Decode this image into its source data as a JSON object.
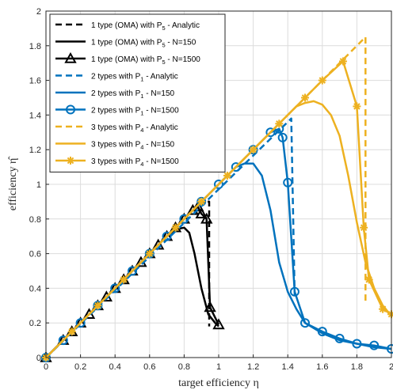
{
  "chart_data": {
    "type": "line",
    "title": "",
    "xlabel": "target efficiency η",
    "ylabel": "efficiency η̂",
    "xlim": [
      0,
      2
    ],
    "ylim": [
      0,
      2
    ],
    "xticks": [
      "0",
      "0.2",
      "0.4",
      "0.6",
      "0.8",
      "1",
      "1.2",
      "1.4",
      "1.6",
      "1.8",
      "2"
    ],
    "yticks": [
      "0",
      "0.2",
      "0.4",
      "0.6",
      "0.8",
      "1",
      "1.2",
      "1.4",
      "1.6",
      "1.8",
      "2"
    ],
    "grid": true,
    "legend_position": "top-left",
    "series": [
      {
        "name": "1 type (OMA) with P_5 - Analytic",
        "color": "#000000",
        "style": "dashed",
        "marker": "none",
        "x": [
          0,
          0.9,
          0.9,
          0.945,
          0.945
        ],
        "y": [
          0,
          0.9,
          0.9,
          0.9,
          0.18
        ]
      },
      {
        "name": "1 type (OMA) with P_5 - N=150",
        "color": "#000000",
        "style": "solid",
        "marker": "none",
        "x": [
          0,
          0.7,
          0.75,
          0.8,
          0.83,
          0.86,
          0.9,
          0.94,
          0.98,
          1.0
        ],
        "y": [
          0,
          0.7,
          0.74,
          0.75,
          0.72,
          0.6,
          0.4,
          0.25,
          0.2,
          0.18
        ]
      },
      {
        "name": "1 type (OMA) with P_5 - N=1500",
        "color": "#000000",
        "style": "solid",
        "marker": "triangle",
        "x": [
          0,
          0.1,
          0.15,
          0.2,
          0.25,
          0.3,
          0.35,
          0.4,
          0.45,
          0.5,
          0.55,
          0.6,
          0.65,
          0.7,
          0.75,
          0.8,
          0.85,
          0.88,
          0.9,
          0.93,
          0.95,
          1.0
        ],
        "y": [
          0,
          0.1,
          0.15,
          0.2,
          0.25,
          0.3,
          0.35,
          0.4,
          0.45,
          0.5,
          0.55,
          0.6,
          0.65,
          0.7,
          0.75,
          0.8,
          0.85,
          0.87,
          0.83,
          0.8,
          0.29,
          0.19
        ]
      },
      {
        "name": "2 types with P_1 - Analytic",
        "color": "#0072BD",
        "style": "dashed",
        "marker": "none",
        "x": [
          0,
          1.42,
          1.42,
          1.44
        ],
        "y": [
          0,
          1.38,
          1.38,
          0.36
        ]
      },
      {
        "name": "2 types with P_1 - N=150",
        "color": "#0072BD",
        "style": "solid",
        "marker": "none",
        "x": [
          0,
          1.1,
          1.15,
          1.2,
          1.25,
          1.3,
          1.35,
          1.4,
          1.45,
          1.5,
          1.6,
          1.7,
          1.8,
          1.9,
          2.0
        ],
        "y": [
          0,
          1.1,
          1.12,
          1.12,
          1.05,
          0.85,
          0.55,
          0.38,
          0.28,
          0.2,
          0.14,
          0.1,
          0.08,
          0.06,
          0.05
        ]
      },
      {
        "name": "2 types with P_1 - N=1500",
        "color": "#0072BD",
        "style": "solid",
        "marker": "circle",
        "x": [
          0,
          0.1,
          0.2,
          0.3,
          0.4,
          0.5,
          0.6,
          0.7,
          0.8,
          0.9,
          1.0,
          1.1,
          1.2,
          1.3,
          1.35,
          1.37,
          1.4,
          1.44,
          1.5,
          1.6,
          1.7,
          1.8,
          1.9,
          2.0
        ],
        "y": [
          0,
          0.1,
          0.2,
          0.3,
          0.4,
          0.5,
          0.6,
          0.7,
          0.8,
          0.9,
          1.0,
          1.1,
          1.2,
          1.3,
          1.32,
          1.27,
          1.01,
          0.38,
          0.2,
          0.15,
          0.11,
          0.08,
          0.07,
          0.05
        ]
      },
      {
        "name": "3 types with P_4 - Analytic",
        "color": "#EDB120",
        "style": "dashed",
        "marker": "none",
        "x": [
          0,
          1.8,
          1.85,
          1.85
        ],
        "y": [
          0,
          1.8,
          1.85,
          0.32
        ]
      },
      {
        "name": "3 types with P_4 - N=150",
        "color": "#EDB120",
        "style": "solid",
        "marker": "none",
        "x": [
          0,
          1.4,
          1.45,
          1.5,
          1.55,
          1.6,
          1.65,
          1.7,
          1.75,
          1.8,
          1.85,
          1.9,
          1.95,
          2.0
        ],
        "y": [
          0,
          1.4,
          1.45,
          1.47,
          1.48,
          1.46,
          1.4,
          1.28,
          1.05,
          0.78,
          0.55,
          0.4,
          0.3,
          0.24
        ]
      },
      {
        "name": "3 types with P_4 - N=1500",
        "color": "#EDB120",
        "style": "solid",
        "marker": "star",
        "x": [
          0,
          0.15,
          0.3,
          0.45,
          0.6,
          0.75,
          0.9,
          1.05,
          1.2,
          1.35,
          1.5,
          1.6,
          1.72,
          1.8,
          1.84,
          1.87,
          1.95,
          2.0
        ],
        "y": [
          0,
          0.15,
          0.3,
          0.45,
          0.6,
          0.75,
          0.9,
          1.05,
          1.2,
          1.35,
          1.5,
          1.6,
          1.71,
          1.45,
          0.75,
          0.45,
          0.28,
          0.25
        ]
      }
    ]
  },
  "legend": [
    {
      "prefix": "1 type (OMA) with P",
      "sub": "5",
      "suffix": " - Analytic"
    },
    {
      "prefix": "1 type (OMA) with P",
      "sub": "5",
      "suffix": " - N=150"
    },
    {
      "prefix": "1 type (OMA) with P",
      "sub": "5",
      "suffix": " - N=1500"
    },
    {
      "prefix": "2 types with P",
      "sub": "1",
      "suffix": " - Analytic"
    },
    {
      "prefix": "2 types with P",
      "sub": "1",
      "suffix": " - N=150"
    },
    {
      "prefix": "2 types with P",
      "sub": "1",
      "suffix": " - N=1500"
    },
    {
      "prefix": "3 types with P",
      "sub": "4",
      "suffix": " - Analytic"
    },
    {
      "prefix": "3 types with P",
      "sub": "4",
      "suffix": " - N=150"
    },
    {
      "prefix": "3 types with P",
      "sub": "4",
      "suffix": " - N=1500"
    }
  ]
}
